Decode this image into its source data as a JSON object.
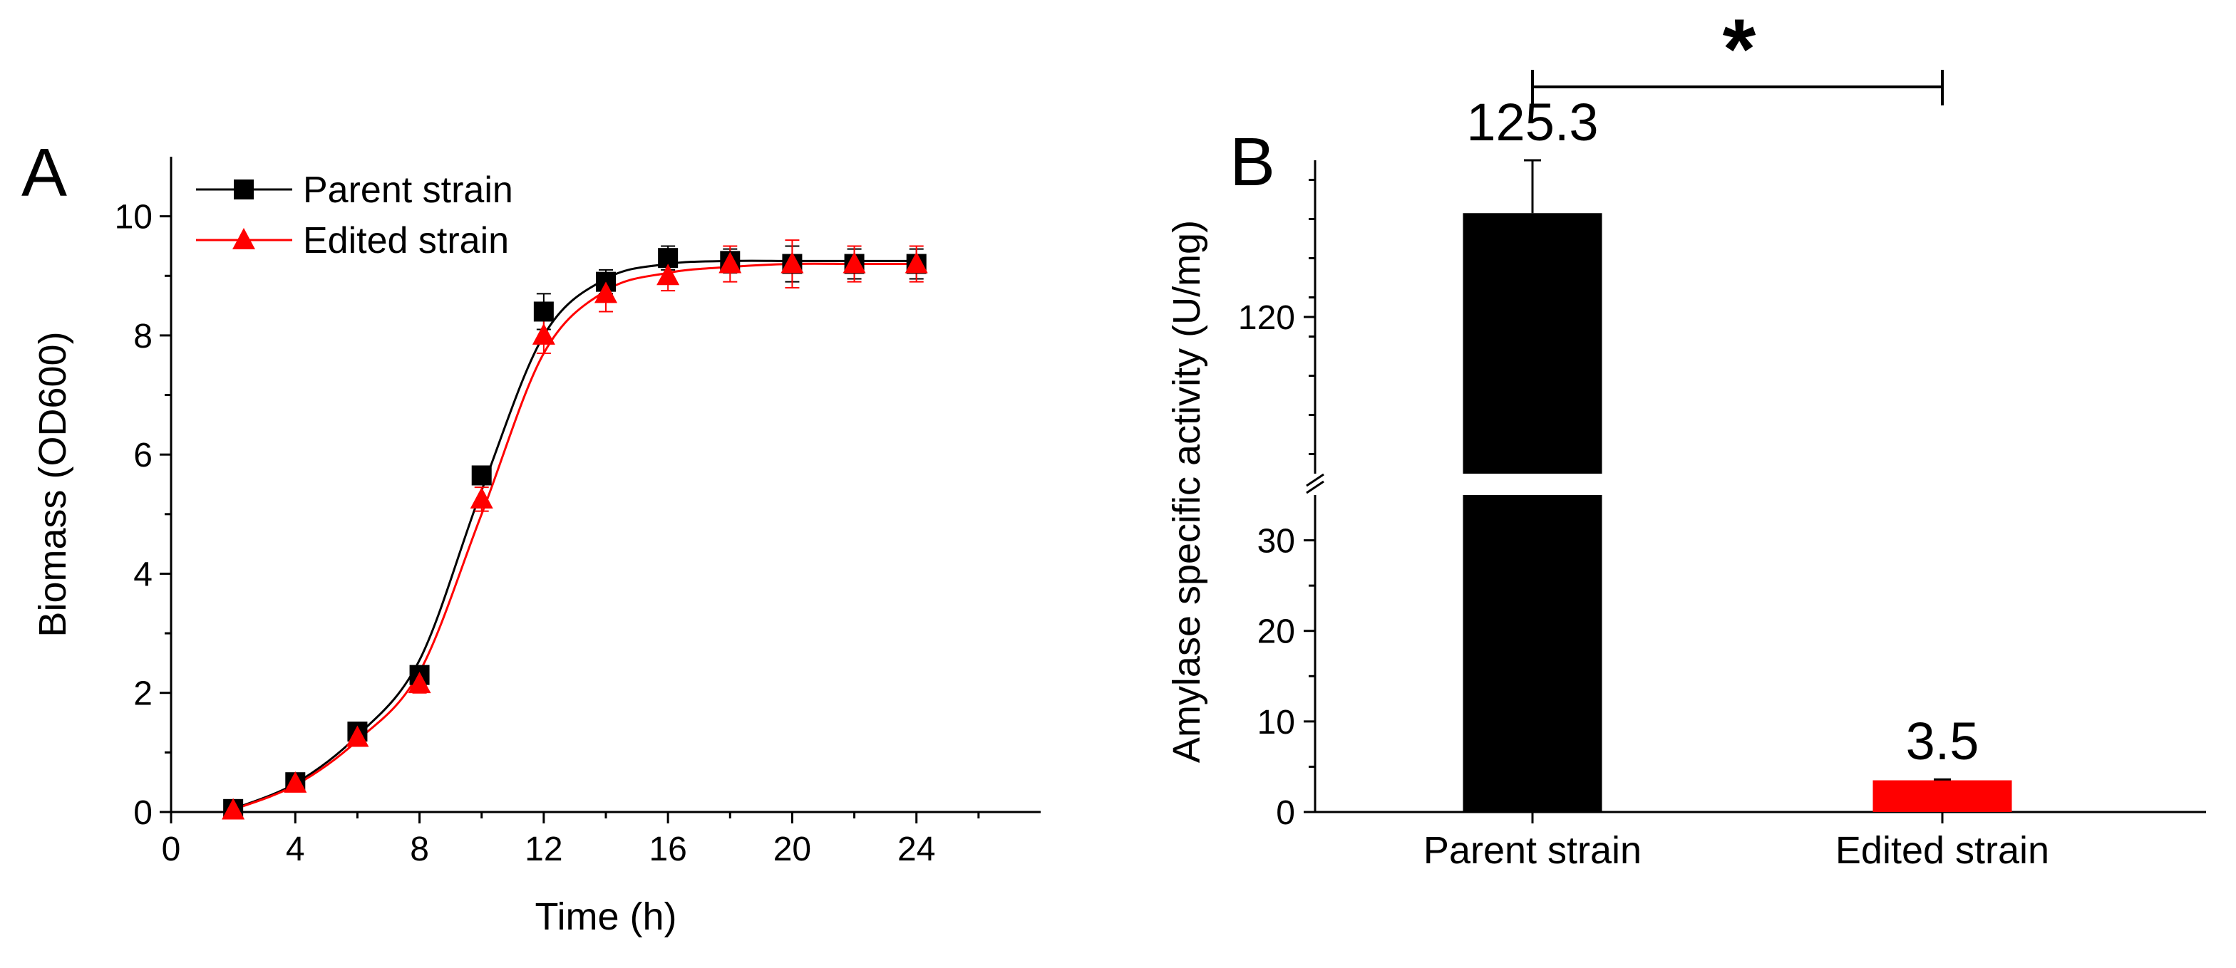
{
  "chart_data": [
    {
      "panel": "A",
      "type": "line",
      "xlabel": "Time (h)",
      "ylabel": "Biomass (OD600)",
      "xlim": [
        0,
        28
      ],
      "ylim": [
        0,
        11
      ],
      "xticks": [
        0,
        4,
        8,
        12,
        16,
        20,
        24
      ],
      "yticks": [
        0,
        2,
        4,
        6,
        8,
        10
      ],
      "legend_position": "top-left",
      "series": [
        {
          "name": "Parent strain",
          "color": "#000000",
          "marker": "square",
          "x": [
            2,
            4,
            6,
            8,
            10,
            12,
            14,
            16,
            18,
            20,
            22,
            24
          ],
          "values": [
            0.05,
            0.5,
            1.35,
            2.3,
            5.65,
            8.4,
            8.9,
            9.3,
            9.25,
            9.2,
            9.2,
            9.2
          ],
          "errors": [
            0.05,
            0.08,
            0.1,
            0.12,
            0.15,
            0.3,
            0.2,
            0.2,
            0.2,
            0.3,
            0.25,
            0.25
          ],
          "fit": [
            0.05,
            0.48,
            1.28,
            2.55,
            5.4,
            8.0,
            8.95,
            9.2,
            9.25,
            9.25,
            9.25,
            9.25
          ]
        },
        {
          "name": "Edited strain",
          "color": "#ff0000",
          "marker": "triangle",
          "x": [
            2,
            4,
            6,
            8,
            10,
            12,
            14,
            16,
            18,
            20,
            22,
            24
          ],
          "values": [
            0.03,
            0.48,
            1.25,
            2.15,
            5.25,
            8.0,
            8.7,
            9.0,
            9.2,
            9.2,
            9.2,
            9.2
          ],
          "errors": [
            0.05,
            0.08,
            0.1,
            0.15,
            0.2,
            0.3,
            0.3,
            0.25,
            0.3,
            0.4,
            0.3,
            0.3
          ],
          "fit": [
            0.04,
            0.45,
            1.2,
            2.35,
            5.0,
            7.7,
            8.75,
            9.05,
            9.15,
            9.2,
            9.2,
            9.2
          ]
        }
      ]
    },
    {
      "panel": "B",
      "type": "bar",
      "ylabel": "Amylase specific activity (U/mg)",
      "categories": [
        "Parent strain",
        "Edited strain"
      ],
      "values": [
        125.3,
        3.5
      ],
      "value_labels": [
        "125.3",
        "3.5"
      ],
      "errors": [
        2.7,
        0.1
      ],
      "colors": [
        "#000000",
        "#ff0000"
      ],
      "y_axis_break": [
        35,
        112
      ],
      "ylim_lower": [
        0,
        35
      ],
      "ylim_upper": [
        112,
        128
      ],
      "yticks_lower": [
        0,
        10,
        20,
        30
      ],
      "yticks_upper": [
        120
      ],
      "significance": "*"
    }
  ]
}
